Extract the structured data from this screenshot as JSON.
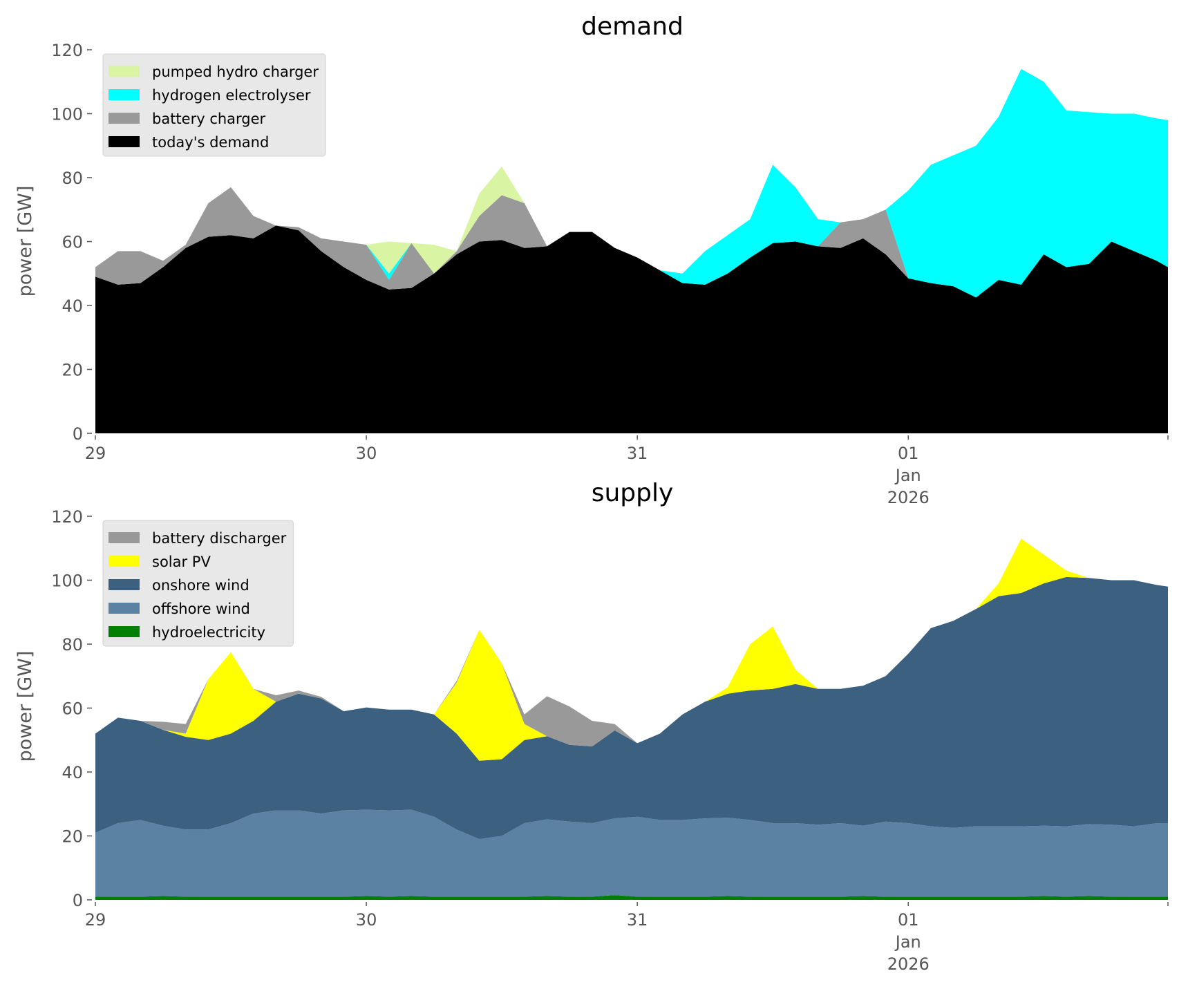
{
  "chart_data": [
    {
      "type": "area",
      "stacked": true,
      "title": "demand",
      "xlabel": "",
      "ylabel": "power [GW]",
      "ylim": [
        0,
        120
      ],
      "yticks": [
        0,
        20,
        40,
        60,
        80,
        100,
        120
      ],
      "x_unit": "hours since 29 Dec 2025 00:00",
      "x_range": [
        0,
        95
      ],
      "xticks": [
        {
          "hour": 0,
          "label": [
            "29"
          ]
        },
        {
          "hour": 24,
          "label": [
            "30"
          ]
        },
        {
          "hour": 48,
          "label": [
            "31"
          ]
        },
        {
          "hour": 72,
          "label": [
            "01",
            "Jan",
            "2026"
          ]
        },
        {
          "hour": 95,
          "label": []
        }
      ],
      "grid": false,
      "legend_position": "top-left",
      "x": [
        0,
        2,
        4,
        6,
        8,
        10,
        12,
        14,
        16,
        18,
        20,
        22,
        24,
        26,
        28,
        30,
        32,
        34,
        36,
        38,
        40,
        42,
        44,
        46,
        48,
        50,
        52,
        54,
        56,
        58,
        60,
        62,
        64,
        66,
        68,
        70,
        72,
        74,
        76,
        78,
        80,
        82,
        84,
        86,
        88,
        90,
        92,
        94,
        95
      ],
      "series": [
        {
          "name": "today's demand",
          "color": "#000000",
          "values": [
            49,
            46.5,
            47,
            52,
            58,
            61.5,
            62,
            61,
            65,
            63.5,
            57,
            52,
            48,
            45,
            45.5,
            50,
            56,
            60,
            60.5,
            58,
            58.5,
            63,
            63,
            58,
            55,
            51,
            47,
            46.5,
            50,
            55,
            59.5,
            60,
            58.5,
            58,
            61,
            56,
            48.5,
            47,
            46,
            42.5,
            48,
            46.5,
            56,
            52,
            53,
            60,
            57,
            54,
            52
          ]
        },
        {
          "name": "battery charger",
          "color": "#999999",
          "values": [
            3,
            10.5,
            10,
            2,
            1,
            10.5,
            15,
            7,
            0,
            1,
            4,
            8,
            11,
            3,
            14,
            0,
            1,
            8,
            14,
            14,
            0,
            0,
            0,
            0,
            0,
            0,
            0,
            0,
            0,
            0,
            0,
            0,
            0,
            8,
            6,
            14,
            0,
            0,
            0,
            0,
            0,
            0,
            0,
            0,
            0,
            0,
            0,
            0,
            0
          ]
        },
        {
          "name": "hydrogen electrolyser",
          "color": "#00ffff",
          "values": [
            0,
            0,
            0,
            0,
            0,
            0,
            0,
            0,
            0,
            0,
            0,
            0,
            0,
            2,
            0,
            0,
            0,
            0,
            0,
            0,
            0,
            0,
            0,
            0,
            0,
            0,
            3,
            10.5,
            12,
            12,
            24.5,
            17,
            8.5,
            0,
            0,
            0,
            27.5,
            37,
            41,
            47.5,
            51,
            67.5,
            54,
            49,
            47.5,
            40,
            43,
            44.5,
            46
          ]
        },
        {
          "name": "pumped hydro charger",
          "color": "#d9f5a3",
          "values": [
            0,
            0,
            0,
            0,
            0,
            0,
            0,
            0,
            0,
            0,
            0,
            0,
            0,
            10,
            0,
            9,
            0,
            7,
            9,
            0,
            0,
            0,
            0,
            0,
            0,
            0,
            0,
            0,
            0,
            0,
            0,
            0,
            0,
            0,
            0,
            0,
            0,
            0,
            0,
            0,
            0,
            0,
            0,
            0,
            0,
            0,
            0,
            0,
            0
          ]
        }
      ],
      "legend": [
        "pumped hydro charger",
        "hydrogen electrolyser",
        "battery charger",
        "today's demand"
      ]
    },
    {
      "type": "area",
      "stacked": true,
      "title": "supply",
      "xlabel": "",
      "ylabel": "power [GW]",
      "ylim": [
        0,
        120
      ],
      "yticks": [
        0,
        20,
        40,
        60,
        80,
        100,
        120
      ],
      "x_unit": "hours since 29 Dec 2025 00:00",
      "x_range": [
        0,
        95
      ],
      "xticks": [
        {
          "hour": 0,
          "label": [
            "29"
          ]
        },
        {
          "hour": 24,
          "label": [
            "30"
          ]
        },
        {
          "hour": 48,
          "label": [
            "31"
          ]
        },
        {
          "hour": 72,
          "label": [
            "01",
            "Jan",
            "2026"
          ]
        },
        {
          "hour": 95,
          "label": []
        }
      ],
      "grid": false,
      "legend_position": "top-left",
      "x": [
        0,
        2,
        4,
        6,
        8,
        10,
        12,
        14,
        16,
        18,
        20,
        22,
        24,
        26,
        28,
        30,
        32,
        34,
        36,
        38,
        40,
        42,
        44,
        46,
        48,
        50,
        52,
        54,
        56,
        58,
        60,
        62,
        64,
        66,
        68,
        70,
        72,
        74,
        76,
        78,
        80,
        82,
        84,
        86,
        88,
        90,
        92,
        94,
        95
      ],
      "series": [
        {
          "name": "hydroelectricity",
          "color": "#008000",
          "values": [
            1,
            1,
            1,
            1.2,
            1,
            1,
            1,
            1,
            1,
            1,
            1,
            1,
            1.2,
            1,
            1.2,
            1,
            1,
            1,
            1,
            1,
            1.2,
            1,
            1,
            1.5,
            1,
            1,
            1,
            1,
            1.2,
            1,
            1,
            1,
            1,
            1,
            1.2,
            1,
            1,
            1,
            1,
            1,
            1,
            1,
            1.2,
            1,
            1.2,
            1,
            1,
            1,
            1
          ]
        },
        {
          "name": "offshore wind",
          "color": "#5b81a3",
          "values": [
            20,
            23,
            24,
            22,
            21,
            21,
            23,
            26,
            27,
            27,
            26,
            27,
            27,
            27,
            27,
            25,
            21,
            18,
            19,
            23,
            24,
            23.5,
            23,
            24,
            25,
            24,
            24,
            24.5,
            24.5,
            24,
            23,
            23,
            22.5,
            23,
            22,
            23.5,
            23,
            22,
            21.5,
            22,
            22,
            22,
            22,
            22,
            22.5,
            22.5,
            22,
            23,
            23
          ]
        },
        {
          "name": "onshore wind",
          "color": "#3b6080",
          "values": [
            31,
            33,
            31,
            30,
            29,
            28,
            28,
            29,
            34,
            36.5,
            36,
            31,
            32,
            31.5,
            31.3,
            32,
            30,
            24.5,
            24,
            26,
            26,
            24,
            24,
            27.5,
            23,
            27,
            33,
            36.5,
            38.8,
            40.5,
            42,
            43.5,
            42.5,
            42,
            43.8,
            45.5,
            53,
            62,
            64.8,
            68,
            72,
            73,
            75.8,
            78,
            77,
            76.5,
            77,
            74.5,
            74
          ]
        },
        {
          "name": "solar PV",
          "color": "#ffff00",
          "values": [
            0,
            0,
            0,
            0,
            1,
            19,
            25.5,
            10,
            0,
            0,
            0,
            0,
            0,
            0,
            0,
            0,
            16,
            41,
            30,
            5,
            0,
            0,
            0,
            0,
            0,
            0,
            0,
            0,
            2,
            14.5,
            19.5,
            4.5,
            0,
            0,
            0,
            0,
            0,
            0,
            0,
            0,
            4,
            17,
            9,
            2,
            0,
            0,
            0,
            0,
            0
          ]
        },
        {
          "name": "battery discharger",
          "color": "#999999",
          "values": [
            0,
            0,
            0,
            2.5,
            3,
            0,
            0,
            0,
            2,
            1,
            0.5,
            0,
            0,
            0,
            0,
            0,
            0.5,
            0,
            0,
            3,
            12.5,
            12,
            8,
            2,
            0,
            0,
            0,
            0,
            0,
            0,
            0,
            0,
            0,
            0,
            0,
            0,
            0,
            0,
            0,
            0,
            0,
            0,
            0,
            0,
            0,
            0,
            0,
            0,
            0
          ]
        }
      ],
      "legend": [
        "battery discharger",
        "solar PV",
        "onshore wind",
        "offshore wind",
        "hydroelectricity"
      ]
    }
  ]
}
